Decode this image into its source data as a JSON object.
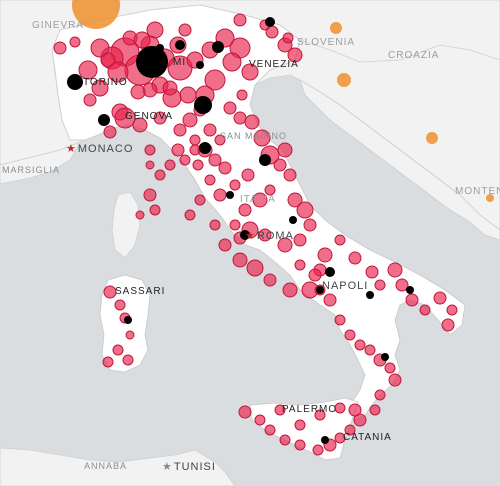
{
  "map": {
    "colors": {
      "sea": "#d9dde0",
      "land": "#f2f2f2",
      "land_italy": "#ffffff",
      "border": "#c8c8c8",
      "marker_red": "#e8214a",
      "marker_black": "#000000",
      "marker_orange": "#ef8f2c"
    }
  },
  "labels": {
    "ginevra": "GINEVRA",
    "slovenia": "SLOVENIA",
    "croazia": "CROAZIA",
    "torino": "TORINO",
    "venezia": "VENEZIA",
    "genova": "GENOVA",
    "monaco": "MONACO",
    "san_marino": "SAN MARINO",
    "marsiglia": "MARSIGLIA",
    "italia": "ITALIA",
    "montenegro": "MONTENE",
    "roma": "ROMA",
    "sassari": "SASSARI",
    "napoli": "NAPOLI",
    "palermo": "PALERMO",
    "catania": "CATANIA",
    "annaba": "ANNABA",
    "tunisi": "TUNISI",
    "mi": "MI"
  },
  "markers": {
    "red": [
      [
        125,
        52,
        14
      ],
      [
        112,
        58,
        11
      ],
      [
        100,
        48,
        9
      ],
      [
        140,
        70,
        15
      ],
      [
        118,
        72,
        10
      ],
      [
        165,
        58,
        9
      ],
      [
        180,
        68,
        12
      ],
      [
        195,
        60,
        8
      ],
      [
        210,
        50,
        8
      ],
      [
        225,
        38,
        9
      ],
      [
        240,
        48,
        10
      ],
      [
        232,
        62,
        9
      ],
      [
        250,
        72,
        8
      ],
      [
        215,
        80,
        10
      ],
      [
        205,
        95,
        9
      ],
      [
        188,
        95,
        8
      ],
      [
        172,
        98,
        9
      ],
      [
        160,
        85,
        8
      ],
      [
        150,
        90,
        7
      ],
      [
        138,
        92,
        7
      ],
      [
        88,
        70,
        9
      ],
      [
        100,
        88,
        8
      ],
      [
        90,
        100,
        6
      ],
      [
        120,
        112,
        8
      ],
      [
        125,
        118,
        10
      ],
      [
        140,
        125,
        7
      ],
      [
        110,
        132,
        6
      ],
      [
        108,
        60,
        7
      ],
      [
        155,
        30,
        8
      ],
      [
        150,
        45,
        9
      ],
      [
        178,
        45,
        8
      ],
      [
        185,
        30,
        6
      ],
      [
        130,
        38,
        7
      ],
      [
        142,
        40,
        8
      ],
      [
        170,
        88,
        7
      ],
      [
        160,
        60,
        7
      ],
      [
        200,
        110,
        6
      ],
      [
        230,
        108,
        6
      ],
      [
        240,
        118,
        6
      ],
      [
        252,
        122,
        7
      ],
      [
        262,
        138,
        8
      ],
      [
        270,
        155,
        9
      ],
      [
        285,
        150,
        7
      ],
      [
        280,
        165,
        6
      ],
      [
        290,
        175,
        6
      ],
      [
        295,
        200,
        7
      ],
      [
        305,
        210,
        8
      ],
      [
        310,
        225,
        6
      ],
      [
        300,
        240,
        6
      ],
      [
        285,
        245,
        7
      ],
      [
        265,
        235,
        6
      ],
      [
        250,
        230,
        8
      ],
      [
        240,
        238,
        6
      ],
      [
        235,
        225,
        5
      ],
      [
        245,
        210,
        6
      ],
      [
        260,
        200,
        7
      ],
      [
        270,
        190,
        5
      ],
      [
        248,
        175,
        6
      ],
      [
        235,
        185,
        5
      ],
      [
        225,
        168,
        6
      ],
      [
        215,
        160,
        6
      ],
      [
        205,
        150,
        7
      ],
      [
        195,
        140,
        5
      ],
      [
        180,
        130,
        6
      ],
      [
        178,
        150,
        6
      ],
      [
        170,
        165,
        5
      ],
      [
        160,
        175,
        5
      ],
      [
        150,
        165,
        4
      ],
      [
        210,
        180,
        5
      ],
      [
        220,
        195,
        6
      ],
      [
        200,
        200,
        5
      ],
      [
        190,
        215,
        5
      ],
      [
        215,
        225,
        5
      ],
      [
        225,
        245,
        6
      ],
      [
        240,
        260,
        7
      ],
      [
        255,
        268,
        8
      ],
      [
        270,
        280,
        6
      ],
      [
        290,
        290,
        7
      ],
      [
        310,
        290,
        8
      ],
      [
        320,
        270,
        6
      ],
      [
        325,
        255,
        7
      ],
      [
        340,
        240,
        5
      ],
      [
        355,
        258,
        6
      ],
      [
        372,
        272,
        6
      ],
      [
        380,
        285,
        5
      ],
      [
        395,
        270,
        7
      ],
      [
        402,
        285,
        6
      ],
      [
        412,
        300,
        6
      ],
      [
        425,
        310,
        5
      ],
      [
        440,
        298,
        6
      ],
      [
        452,
        310,
        5
      ],
      [
        448,
        325,
        6
      ],
      [
        330,
        300,
        6
      ],
      [
        320,
        290,
        5
      ],
      [
        315,
        275,
        6
      ],
      [
        300,
        265,
        5
      ],
      [
        340,
        320,
        5
      ],
      [
        350,
        335,
        5
      ],
      [
        360,
        345,
        5
      ],
      [
        370,
        350,
        5
      ],
      [
        380,
        360,
        6
      ],
      [
        390,
        368,
        5
      ],
      [
        395,
        380,
        6
      ],
      [
        380,
        395,
        5
      ],
      [
        375,
        410,
        5
      ],
      [
        360,
        420,
        6
      ],
      [
        350,
        430,
        5
      ],
      [
        340,
        438,
        5
      ],
      [
        330,
        445,
        6
      ],
      [
        318,
        450,
        5
      ],
      [
        300,
        445,
        5
      ],
      [
        285,
        440,
        5
      ],
      [
        270,
        430,
        5
      ],
      [
        260,
        420,
        5
      ],
      [
        245,
        412,
        6
      ],
      [
        280,
        410,
        5
      ],
      [
        300,
        425,
        5
      ],
      [
        320,
        415,
        5
      ],
      [
        340,
        408,
        5
      ],
      [
        355,
        410,
        6
      ],
      [
        110,
        292,
        6
      ],
      [
        120,
        305,
        5
      ],
      [
        125,
        318,
        5
      ],
      [
        130,
        335,
        4
      ],
      [
        118,
        350,
        5
      ],
      [
        108,
        362,
        5
      ],
      [
        128,
        360,
        5
      ],
      [
        150,
        195,
        6
      ],
      [
        155,
        210,
        5
      ],
      [
        140,
        215,
        4
      ],
      [
        210,
        130,
        6
      ],
      [
        220,
        140,
        5
      ],
      [
        160,
        118,
        6
      ],
      [
        190,
        120,
        7
      ],
      [
        60,
        48,
        6
      ],
      [
        75,
        42,
        5
      ],
      [
        272,
        32,
        6
      ],
      [
        285,
        45,
        7
      ],
      [
        295,
        55,
        7
      ],
      [
        265,
        25,
        5
      ],
      [
        288,
        38,
        5
      ],
      [
        240,
        20,
        6
      ],
      [
        242,
        95,
        5
      ],
      [
        150,
        150,
        5
      ],
      [
        195,
        150,
        5
      ],
      [
        185,
        160,
        5
      ],
      [
        198,
        165,
        5
      ]
    ],
    "black": [
      [
        152,
        62,
        16
      ],
      [
        203,
        105,
        9
      ],
      [
        218,
        47,
        6
      ],
      [
        104,
        120,
        6
      ],
      [
        205,
        148,
        6
      ],
      [
        265,
        160,
        6
      ],
      [
        293,
        220,
        4
      ],
      [
        75,
        82,
        8
      ],
      [
        330,
        272,
        5
      ],
      [
        320,
        290,
        4
      ],
      [
        370,
        295,
        4
      ],
      [
        410,
        290,
        4
      ],
      [
        385,
        357,
        4
      ],
      [
        128,
        320,
        4
      ],
      [
        180,
        45,
        5
      ],
      [
        270,
        22,
        5
      ],
      [
        245,
        235,
        5
      ],
      [
        325,
        440,
        4
      ],
      [
        230,
        195,
        4
      ],
      [
        200,
        65,
        4
      ],
      [
        160,
        48,
        4
      ]
    ],
    "big_black": [
      [
        152,
        62,
        16
      ],
      [
        203,
        105,
        9
      ],
      [
        75,
        82,
        8
      ]
    ],
    "orange": [
      [
        96,
        5,
        24
      ],
      [
        336,
        28,
        6
      ],
      [
        344,
        80,
        7
      ],
      [
        432,
        138,
        6
      ],
      [
        490,
        198,
        4
      ]
    ]
  }
}
